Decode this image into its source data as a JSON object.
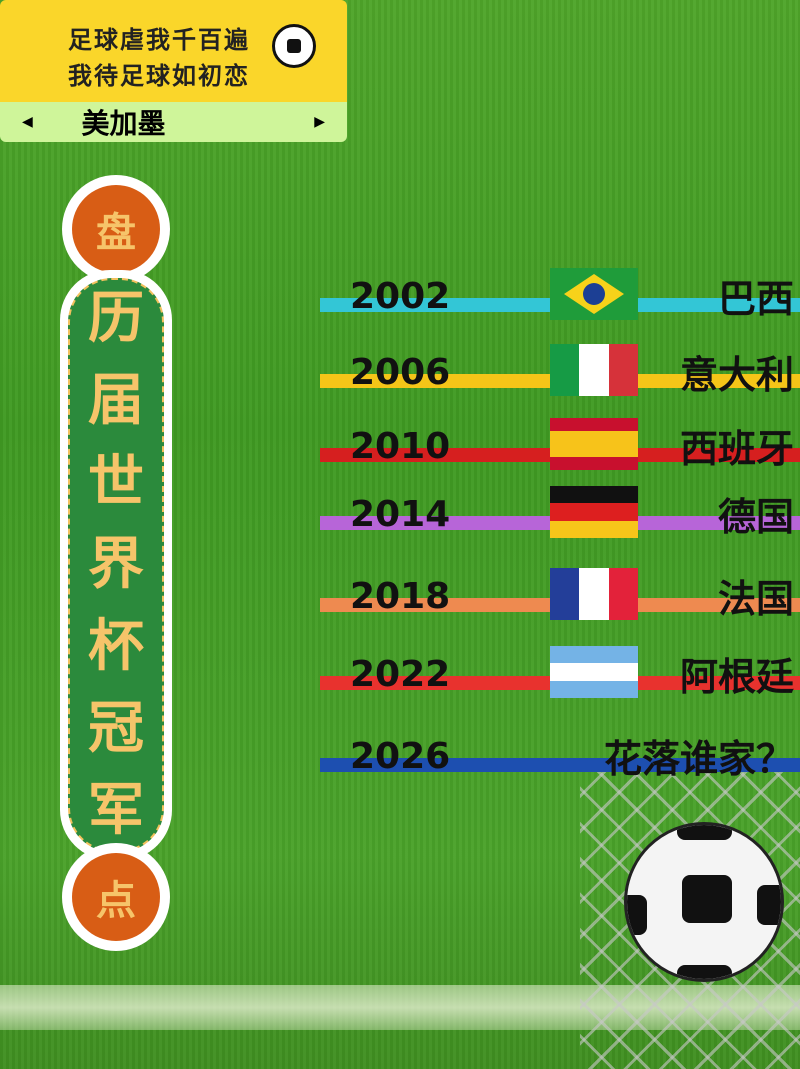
{
  "banner": {
    "line1": "足球虐我千百遍",
    "line2": "我待足球如初恋",
    "subtitle": "美加墨",
    "left_arrow": "◀",
    "right_arrow": "▶"
  },
  "pillar": {
    "top": "盘",
    "chars": [
      "历",
      "届",
      "世",
      "界",
      "杯",
      "冠",
      "军"
    ],
    "bottom": "点"
  },
  "champions": [
    {
      "year": "2002",
      "country": "巴西",
      "color": "#33c6d6"
    },
    {
      "year": "2006",
      "country": "意大利",
      "color": "#f5c518"
    },
    {
      "year": "2010",
      "country": "西班牙",
      "color": "#d61f1f"
    },
    {
      "year": "2014",
      "country": "德国",
      "color": "#b765d8"
    },
    {
      "year": "2018",
      "country": "法国",
      "color": "#ee8a50"
    },
    {
      "year": "2022",
      "country": "阿根廷",
      "color": "#e8322e"
    },
    {
      "year": "2026",
      "country": "花落谁家？",
      "color": "#1d4fb0"
    }
  ]
}
